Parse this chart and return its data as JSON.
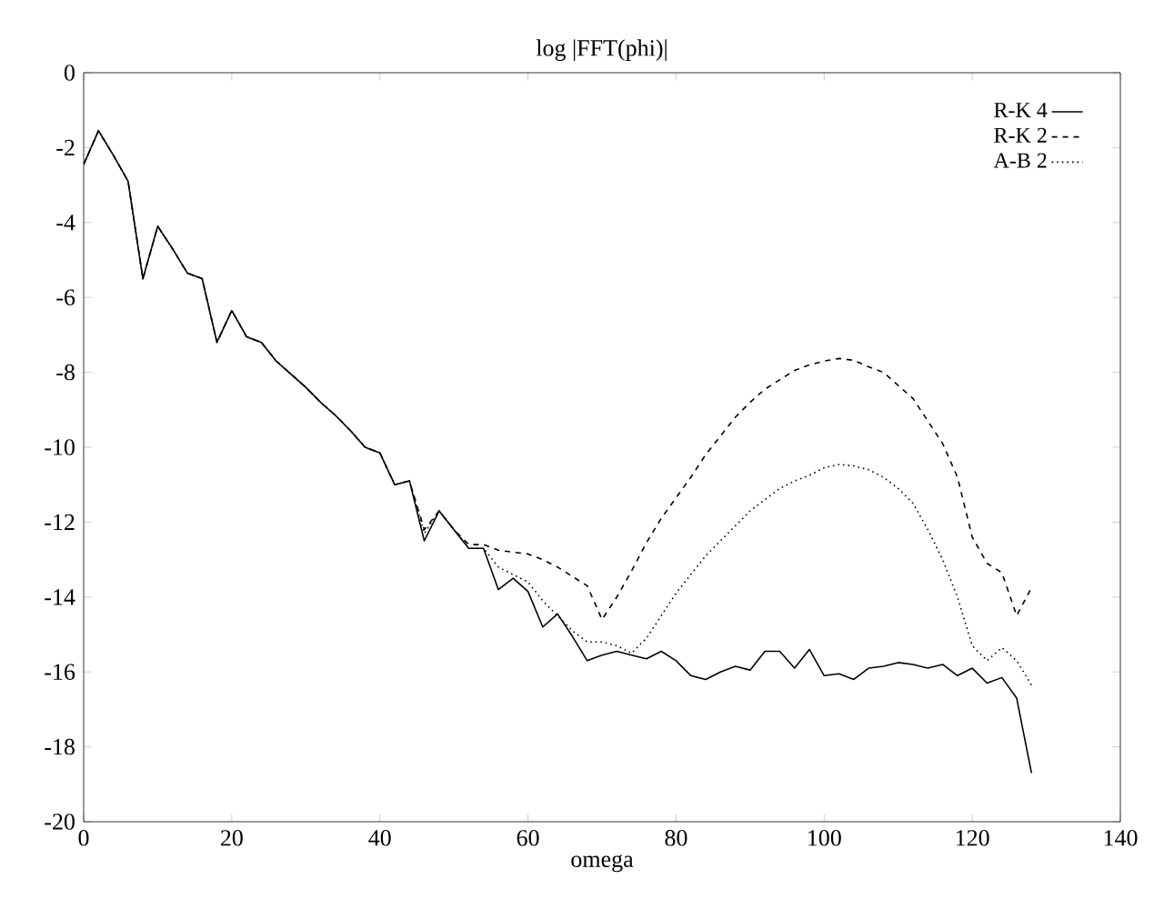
{
  "chart_data": {
    "type": "line",
    "title": "log |FFT(phi)|",
    "xlabel": "omega",
    "x": [
      0,
      2,
      4,
      6,
      8,
      10,
      12,
      14,
      16,
      18,
      20,
      22,
      24,
      26,
      28,
      30,
      32,
      34,
      36,
      38,
      40,
      42,
      44,
      46,
      48,
      50,
      52,
      54,
      56,
      58,
      60,
      62,
      64,
      66,
      68,
      70,
      72,
      74,
      76,
      78,
      80,
      82,
      84,
      86,
      88,
      90,
      92,
      94,
      96,
      98,
      100,
      102,
      104,
      106,
      108,
      110,
      112,
      114,
      116,
      118,
      120,
      122,
      124,
      126,
      128
    ],
    "series": [
      {
        "name": "R-K 4",
        "color": "#000000",
        "line_style": "solid",
        "values": [
          -2.45,
          -1.55,
          -2.2,
          -2.9,
          -5.5,
          -4.1,
          -4.7,
          -5.35,
          -5.5,
          -7.2,
          -6.35,
          -7.05,
          -7.2,
          -7.7,
          -8.05,
          -8.4,
          -8.8,
          -9.15,
          -9.55,
          -10.0,
          -10.15,
          -11.0,
          -10.9,
          -12.5,
          -11.7,
          -12.2,
          -12.7,
          -12.7,
          -13.8,
          -13.5,
          -13.85,
          -14.8,
          -14.45,
          -15.05,
          -15.7,
          -15.55,
          -15.45,
          -15.55,
          -15.65,
          -15.45,
          -15.7,
          -16.1,
          -16.2,
          -16.0,
          -15.85,
          -15.95,
          -15.45,
          -15.45,
          -15.9,
          -15.4,
          -16.1,
          -16.05,
          -16.2,
          -15.9,
          -15.85,
          -15.75,
          -15.8,
          -15.9,
          -15.8,
          -16.1,
          -15.9,
          -16.3,
          -16.15,
          -16.7,
          -18.7
        ]
      },
      {
        "name": "R-K 2",
        "color": "#000000",
        "line_style": "dashed",
        "values": [
          -2.45,
          -1.55,
          -2.2,
          -2.9,
          -5.5,
          -4.1,
          -4.7,
          -5.35,
          -5.5,
          -7.2,
          -6.35,
          -7.05,
          -7.2,
          -7.7,
          -8.05,
          -8.4,
          -8.8,
          -9.15,
          -9.55,
          -10.0,
          -10.15,
          -11.0,
          -10.9,
          -12.2,
          -11.7,
          -12.2,
          -12.6,
          -12.6,
          -12.75,
          -12.8,
          -12.85,
          -13.0,
          -13.2,
          -13.45,
          -13.7,
          -14.6,
          -14.0,
          -13.3,
          -12.55,
          -11.9,
          -11.35,
          -10.8,
          -10.2,
          -9.7,
          -9.2,
          -8.8,
          -8.45,
          -8.2,
          -7.95,
          -7.8,
          -7.7,
          -7.63,
          -7.68,
          -7.85,
          -8.0,
          -8.35,
          -8.7,
          -9.3,
          -9.9,
          -10.8,
          -12.4,
          -13.1,
          -13.35,
          -14.5,
          -13.75
        ]
      },
      {
        "name": "A-B 2",
        "color": "#000000",
        "line_style": "dotted",
        "values": [
          -2.45,
          -1.55,
          -2.2,
          -2.9,
          -5.5,
          -4.1,
          -4.7,
          -5.35,
          -5.5,
          -7.2,
          -6.35,
          -7.05,
          -7.2,
          -7.7,
          -8.05,
          -8.4,
          -8.8,
          -9.15,
          -9.55,
          -10.0,
          -10.15,
          -11.0,
          -10.9,
          -12.3,
          -11.7,
          -12.2,
          -12.7,
          -12.7,
          -13.2,
          -13.4,
          -13.6,
          -14.1,
          -14.5,
          -14.9,
          -15.2,
          -15.2,
          -15.3,
          -15.5,
          -15.1,
          -14.5,
          -13.9,
          -13.4,
          -12.9,
          -12.5,
          -12.1,
          -11.7,
          -11.4,
          -11.1,
          -10.9,
          -10.75,
          -10.55,
          -10.46,
          -10.5,
          -10.6,
          -10.8,
          -11.1,
          -11.5,
          -12.2,
          -13.0,
          -14.0,
          -15.3,
          -15.7,
          -15.35,
          -15.7,
          -16.35
        ]
      }
    ],
    "xlim": [
      0,
      140
    ],
    "ylim": [
      -20,
      0
    ],
    "xticks": [
      0,
      20,
      40,
      60,
      80,
      100,
      120,
      140
    ],
    "yticks": [
      0,
      -2,
      -4,
      -6,
      -8,
      -10,
      -12,
      -14,
      -16,
      -18,
      -20
    ],
    "legend": "top right",
    "grid": false,
    "marker": "none"
  }
}
